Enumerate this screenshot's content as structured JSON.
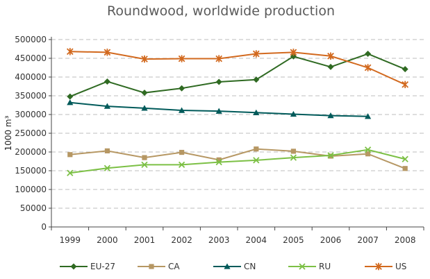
{
  "chart_data": {
    "type": "line",
    "title": "Roundwood, worldwide production",
    "xlabel": "",
    "ylabel": "1000 m³",
    "categories": [
      "1999",
      "2000",
      "2001",
      "2002",
      "2003",
      "2004",
      "2005",
      "2006",
      "2007",
      "2008"
    ],
    "ylim": [
      0,
      500000
    ],
    "yticks": [
      "0",
      "50000",
      "100000",
      "150000",
      "200000",
      "250000",
      "300000",
      "350000",
      "400000",
      "450000",
      "500000"
    ],
    "grid": true,
    "legend_position": "bottom",
    "series": [
      {
        "name": "EU-27",
        "color": "#2f6a22",
        "marker": "diamond",
        "values": [
          348000,
          388000,
          358000,
          370000,
          387000,
          393000,
          455000,
          427000,
          462000,
          421000
        ]
      },
      {
        "name": "CA",
        "color": "#b69763",
        "marker": "square",
        "values": [
          193000,
          203000,
          185000,
          199000,
          179000,
          208000,
          202000,
          189000,
          195000,
          156000
        ]
      },
      {
        "name": "CN",
        "color": "#005a5a",
        "marker": "triangle",
        "values": [
          332000,
          322000,
          317000,
          311000,
          309000,
          305000,
          301000,
          297000,
          295000,
          null
        ]
      },
      {
        "name": "RU",
        "color": "#7cc045",
        "marker": "x",
        "values": [
          144000,
          157000,
          166000,
          166000,
          173000,
          178000,
          185000,
          191000,
          206000,
          181000
        ]
      },
      {
        "name": "US",
        "color": "#d2691e",
        "marker": "star",
        "values": [
          468000,
          466000,
          448000,
          449000,
          449000,
          462000,
          466000,
          456000,
          425000,
          380000
        ]
      }
    ]
  }
}
